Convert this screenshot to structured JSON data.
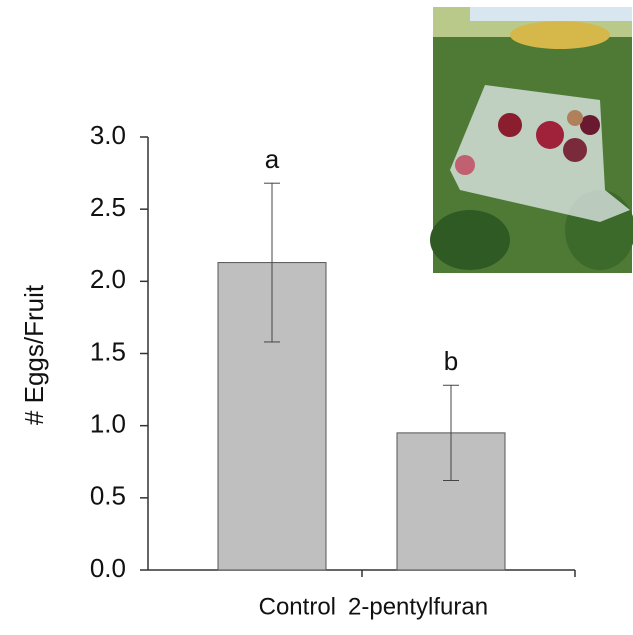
{
  "chart_data": {
    "type": "bar",
    "y_label": "# Eggs/Fruit",
    "categories": [
      "Control",
      "2-pentylfuran"
    ],
    "values": [
      2.13,
      0.95
    ],
    "errors": [
      0.55,
      0.33
    ],
    "annotations": [
      "a",
      "b"
    ],
    "color": "#bfbfbf",
    "ylim": [
      0,
      3
    ],
    "yticks": [
      {
        "value": 0,
        "label": "0.0"
      },
      {
        "value": 0.5,
        "label": "0.5"
      },
      {
        "value": 1,
        "label": "1.0"
      },
      {
        "value": 1.5,
        "label": "1.5"
      },
      {
        "value": 2,
        "label": "2.0"
      },
      {
        "value": 2.5,
        "label": "2.5"
      },
      {
        "value": 3,
        "label": "3.0"
      }
    ],
    "grid": false
  }
}
